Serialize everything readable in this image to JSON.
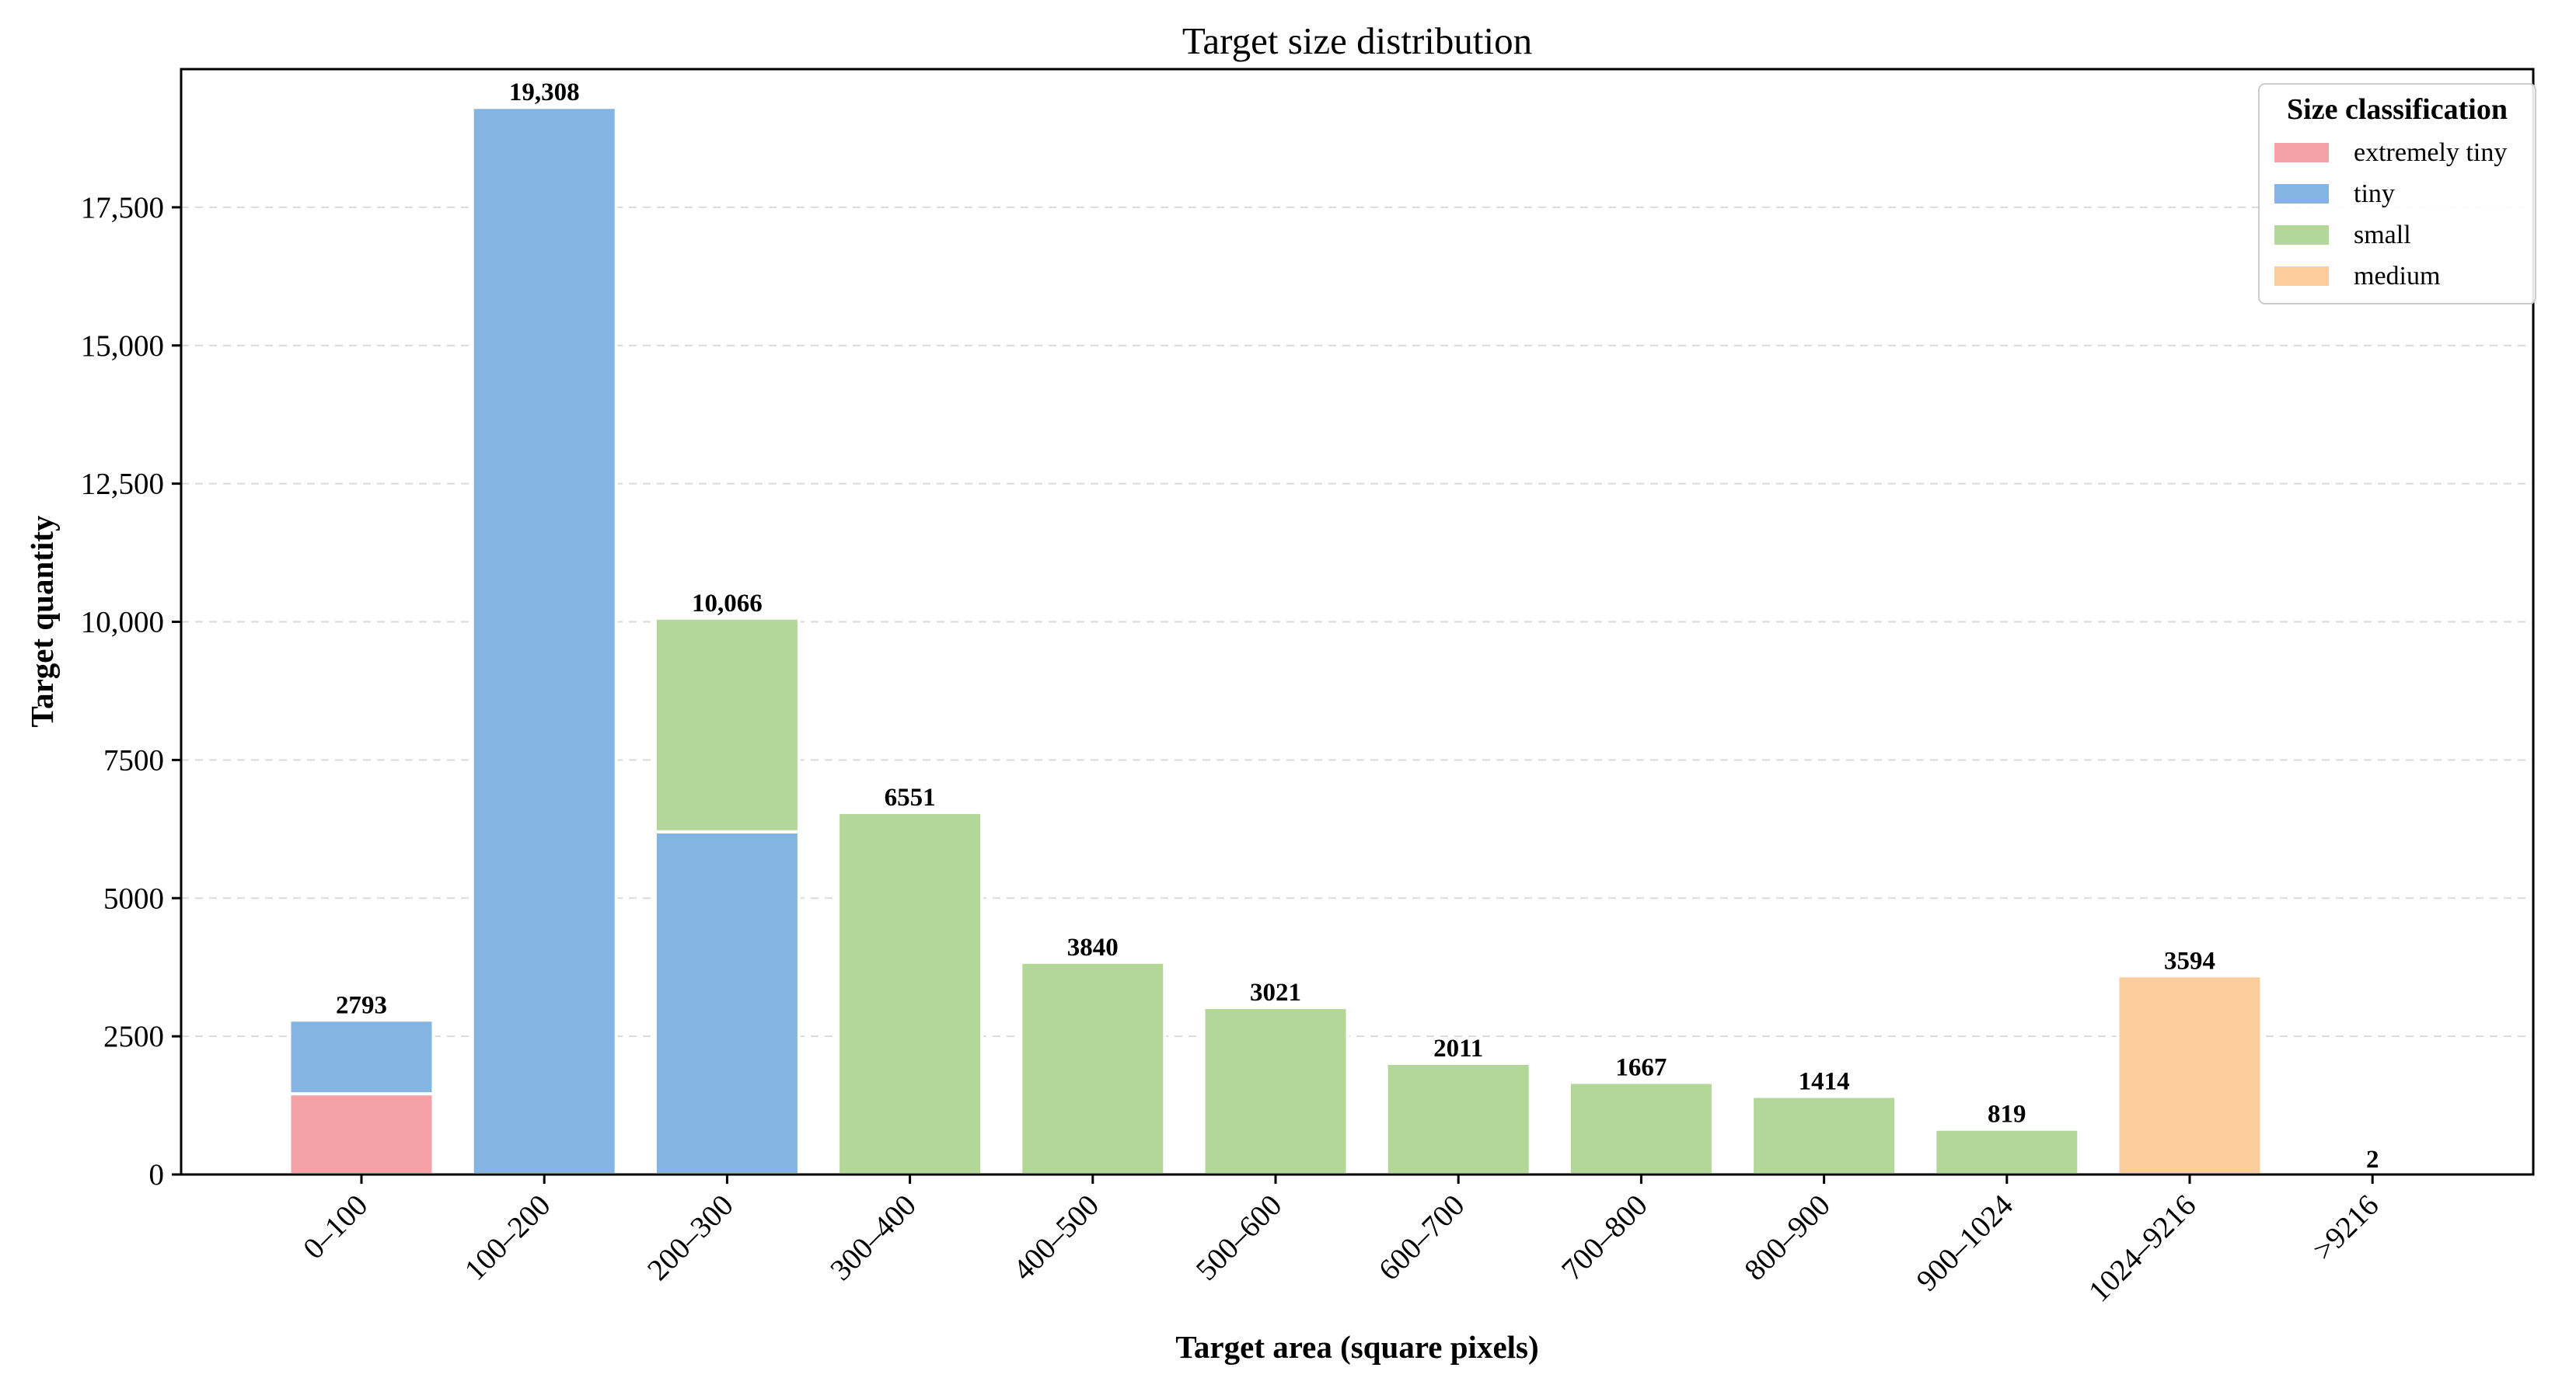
{
  "chart_data": {
    "type": "bar",
    "stacked": true,
    "title": "Target size distribution",
    "xlabel": "Target area (square pixels)",
    "ylabel": "Target quantity",
    "ylim": [
      0,
      20000
    ],
    "yticks": [
      0,
      2500,
      5000,
      7500,
      10000,
      12500,
      15000,
      17500
    ],
    "ytick_labels": [
      "0",
      "2500",
      "5000",
      "7500",
      "10,000",
      "12,500",
      "15,000",
      "17,500"
    ],
    "grid": "horizontal dashed",
    "categories": [
      "0–100",
      "100–200",
      "200–300",
      "300–400",
      "400–500",
      "500–600",
      "600–700",
      "700–800",
      "800–900",
      "900–1024",
      "1024–9216",
      ">9216"
    ],
    "series": [
      {
        "name": "extremely tiny",
        "color": "#f4a2a5",
        "values": [
          1460,
          0,
          0,
          0,
          0,
          0,
          0,
          0,
          0,
          0,
          0,
          0
        ]
      },
      {
        "name": "tiny",
        "color": "#85b4e2",
        "values": [
          1333,
          19308,
          6200,
          0,
          0,
          0,
          0,
          0,
          0,
          0,
          0,
          0
        ]
      },
      {
        "name": "small",
        "color": "#b3d798",
        "values": [
          0,
          0,
          3866,
          6551,
          3840,
          3021,
          2011,
          1667,
          1414,
          819,
          0,
          0
        ]
      },
      {
        "name": "medium",
        "color": "#fbcd9c",
        "values": [
          0,
          0,
          0,
          0,
          0,
          0,
          0,
          0,
          0,
          0,
          3594,
          2
        ]
      }
    ],
    "totals": [
      2793,
      19308,
      10066,
      6551,
      3840,
      3021,
      2011,
      1667,
      1414,
      819,
      3594,
      2
    ],
    "total_labels": [
      "2793",
      "19,308",
      "10,066",
      "6551",
      "3840",
      "3021",
      "2011",
      "1667",
      "1414",
      "819",
      "3594",
      "2"
    ],
    "legend": {
      "title": "Size classification",
      "placement": "top-right"
    }
  }
}
